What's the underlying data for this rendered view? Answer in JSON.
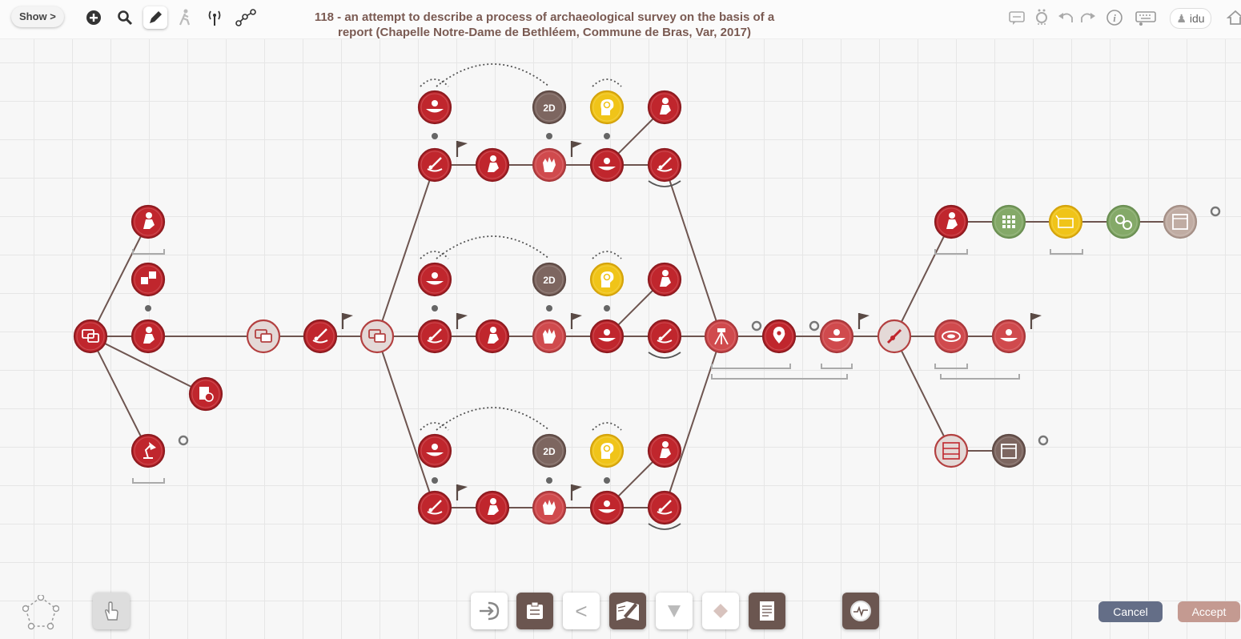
{
  "toolbar": {
    "show_label": "Show >",
    "icons": [
      "add-icon",
      "search-icon",
      "pencil-icon",
      "walker-icon",
      "antenna-icon",
      "network-icon"
    ]
  },
  "title": "118 - an attempt to describe a process of archaeological survey on the basis of a report (Chapelle Notre-Dame de Bethléem, Commune de Bras, Var, 2017)",
  "title_lines": [
    "118 - an attempt to describe a process of archaeological survey on the basis of a",
    "report (Chapelle Notre-Dame de Bethléem, Commune de Bras, Var, 2017)"
  ],
  "right_toolbar": {
    "icons": [
      "comment-icon",
      "ring-icon",
      "undo-icon",
      "redo-icon",
      "info-icon",
      "keyboard-icon"
    ],
    "user_label": "idu",
    "home_icon": "home-icon"
  },
  "node_badges": {
    "two_d": "2D"
  },
  "colors": {
    "red": "#c0262d",
    "light_red": "#d04a4d",
    "pale": "#ddd2d0",
    "brown": "#7d6660",
    "yellow": "#f0c419",
    "green": "#84a968",
    "tan": "#c0aca3",
    "line": "#6e5550"
  },
  "bottom_bar": {
    "left_icons": [
      "pentagon-icon",
      "hand-icon"
    ],
    "buttons": [
      "login-icon",
      "clipboard-icon",
      "back-chevron-icon",
      "pencil-book-icon",
      "triangle-down-icon",
      "diamond-icon",
      "document-icon",
      "gauge-icon"
    ],
    "back_label": "<",
    "cancel_label": "Cancel",
    "accept_label": "Accept"
  }
}
